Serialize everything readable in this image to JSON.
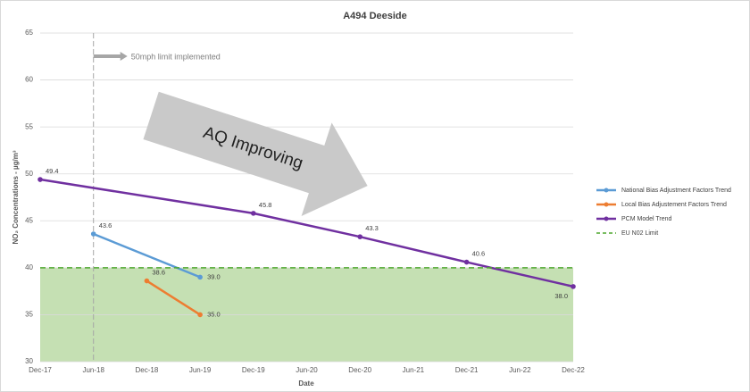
{
  "chart_data": {
    "type": "line",
    "title": "A494 Deeside",
    "x_label": "Date",
    "y_label": "NO₂ Concentrations - µg/m³",
    "categories": [
      "Dec-17",
      "Jun-18",
      "Dec-18",
      "Jun-19",
      "Dec-19",
      "Jun-20",
      "Dec-20",
      "Jun-21",
      "Dec-21",
      "Jun-22",
      "Dec-22"
    ],
    "series": [
      {
        "name": "National Bias Adjustment Factors Trend",
        "color": "#5b9bd5",
        "x": [
          "Jun-18",
          "Jun-19"
        ],
        "values": [
          43.6,
          39.0
        ],
        "value_labels": [
          "43.6",
          "39.0"
        ]
      },
      {
        "name": "Local Bias Adjustement Factors Trend",
        "color": "#ed7d31",
        "x": [
          "Dec-18",
          "Jun-19"
        ],
        "values": [
          38.6,
          35.0
        ],
        "value_labels": [
          "38.6",
          "35.0"
        ]
      },
      {
        "name": "PCM Model Trend",
        "color": "#7030a0",
        "x": [
          "Dec-17",
          "Dec-19",
          "Dec-20",
          "Dec-21",
          "Dec-22"
        ],
        "values": [
          49.4,
          45.8,
          43.3,
          40.6,
          38.0
        ],
        "value_labels": [
          "49.4",
          "45.8",
          "43.3",
          "40.6",
          "38.0"
        ]
      },
      {
        "name": "EU N02 Limit",
        "color": "#4ea72e",
        "dashed": true,
        "fill": "#c5e0b3",
        "x": [
          "Dec-17",
          "Dec-22"
        ],
        "values": [
          40,
          40
        ]
      }
    ],
    "ylim": [
      30,
      65
    ],
    "yticks": [
      30,
      35,
      40,
      45,
      50,
      55,
      60,
      65
    ],
    "grid": true,
    "legend": "right",
    "annotations": {
      "event": "50mph limit implemented",
      "event_x": "Jun-18",
      "trend": "AQ Improving"
    }
  }
}
